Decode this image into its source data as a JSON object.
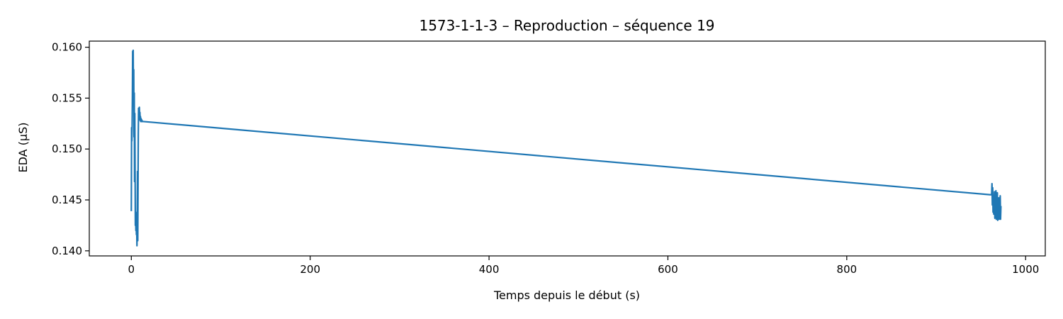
{
  "chart_data": {
    "type": "line",
    "title": "1573-1-1-3 – Reproduction – séquence 19",
    "xlabel": "Temps depuis le début (s)",
    "ylabel": "EDA (µS)",
    "xlim": [
      -47,
      1022
    ],
    "ylim": [
      0.1395,
      0.1606
    ],
    "xticks": [
      0,
      200,
      400,
      600,
      800,
      1000
    ],
    "xtick_labels": [
      "0",
      "200",
      "400",
      "600",
      "800",
      "1000"
    ],
    "yticks": [
      0.14,
      0.145,
      0.15,
      0.155,
      0.16
    ],
    "ytick_labels": [
      "0.140",
      "0.145",
      "0.150",
      "0.155",
      "0.160"
    ],
    "grid": false,
    "series": [
      {
        "color": "#1f77b4",
        "x": [
          0,
          0.3,
          0.6,
          0.9,
          1.2,
          1.5,
          1.8,
          2.1,
          2.4,
          2.7,
          3.0,
          3.3,
          3.6,
          3.9,
          4.2,
          4.5,
          4.8,
          5.1,
          5.4,
          5.7,
          6.0,
          6.3,
          6.6,
          6.9,
          7.2,
          7.5,
          7.8,
          8.1,
          8.4,
          8.7,
          9.0,
          9.3,
          9.6,
          9.9,
          10.2,
          10.5,
          10.8,
          11.1,
          11.4,
          11.7,
          12.0,
          12.3,
          12.6,
          12.9,
          13.5,
          962.0,
          962.4,
          962.8,
          963.2,
          963.6,
          964.0,
          964.4,
          964.8,
          965.2,
          965.6,
          966.0,
          966.4,
          966.8,
          967.2,
          967.6,
          968.0,
          968.4,
          968.8,
          969.2,
          969.6,
          970.0,
          970.4,
          970.8,
          971.2,
          971.6,
          972.0,
          972.4
        ],
        "y": [
          0.1439,
          0.1521,
          0.1508,
          0.1523,
          0.1551,
          0.1596,
          0.1562,
          0.1597,
          0.1545,
          0.1578,
          0.1512,
          0.1555,
          0.1468,
          0.1535,
          0.148,
          0.1425,
          0.1438,
          0.142,
          0.1433,
          0.1416,
          0.1425,
          0.1405,
          0.144,
          0.1478,
          0.141,
          0.1466,
          0.1515,
          0.154,
          0.1538,
          0.1529,
          0.1541,
          0.153,
          0.1536,
          0.1528,
          0.1532,
          0.1527,
          0.153,
          0.1527,
          0.1529,
          0.1527,
          0.1528,
          0.1527,
          0.1527,
          0.1527,
          0.1527,
          0.1455,
          0.1466,
          0.1445,
          0.1462,
          0.1438,
          0.1452,
          0.1436,
          0.1448,
          0.1458,
          0.1432,
          0.1451,
          0.1437,
          0.1459,
          0.1431,
          0.1454,
          0.144,
          0.1457,
          0.143,
          0.1448,
          0.1435,
          0.1452,
          0.1431,
          0.1446,
          0.1437,
          0.1454,
          0.1431,
          0.1444
        ]
      }
    ]
  }
}
